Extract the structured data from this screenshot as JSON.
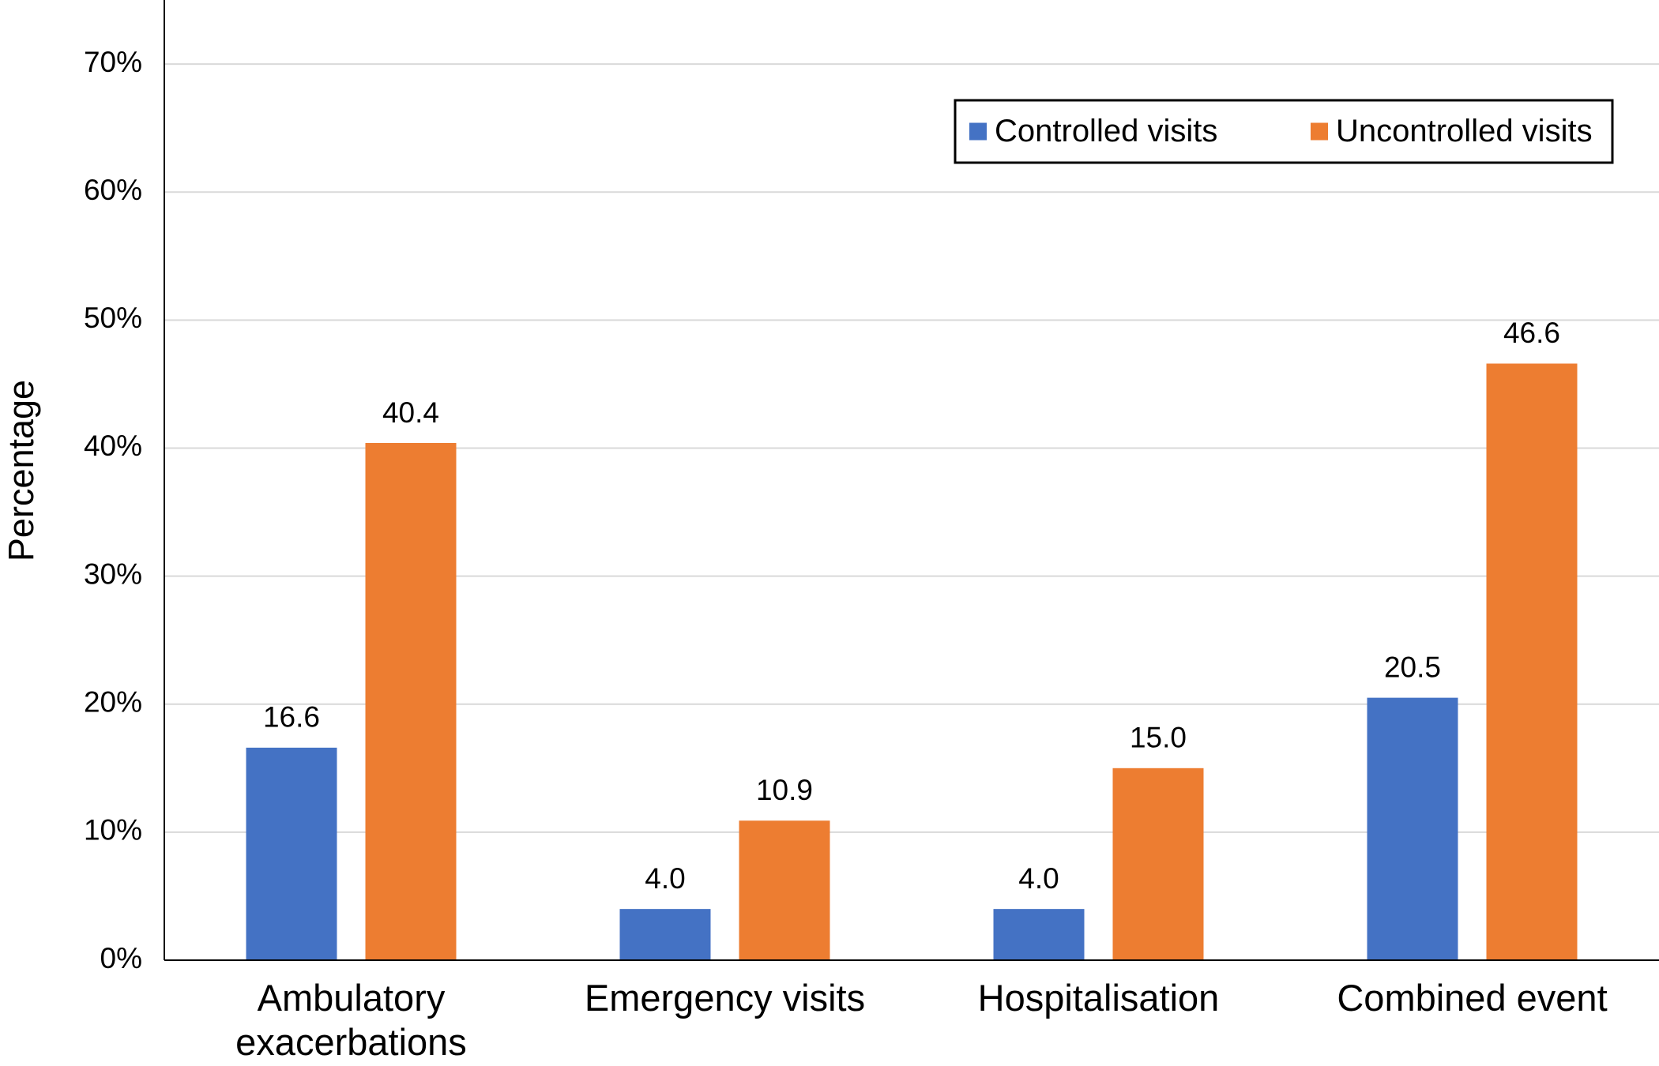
{
  "chart_data": {
    "type": "bar",
    "y_label": "Percentage",
    "categories": [
      "Ambulatory exacerbations",
      "Emergency visits",
      "Hospitalisation",
      "Combined event"
    ],
    "series": [
      {
        "name": "Controlled visits",
        "color": "#4472c4",
        "values": [
          16.6,
          4.0,
          4.0,
          20.5
        ],
        "value_labels": [
          "16.6",
          "4.0",
          "4.0",
          "20.5"
        ]
      },
      {
        "name": "Uncontrolled visits",
        "color": "#ed7d31",
        "values": [
          40.4,
          10.9,
          15.0,
          46.6
        ],
        "value_labels": [
          "40.4",
          "10.9",
          "15.0",
          "46.6"
        ]
      }
    ],
    "ylim": [
      0,
      75
    ],
    "yticks": [
      {
        "value": 0,
        "label": "0%"
      },
      {
        "value": 10,
        "label": "10%"
      },
      {
        "value": 20,
        "label": "20%"
      },
      {
        "value": 30,
        "label": "30%"
      },
      {
        "value": 40,
        "label": "40%"
      },
      {
        "value": 50,
        "label": "50%"
      },
      {
        "value": 60,
        "label": "60%"
      },
      {
        "value": 70,
        "label": "70%"
      }
    ],
    "grid": true,
    "legend": "upper right"
  }
}
